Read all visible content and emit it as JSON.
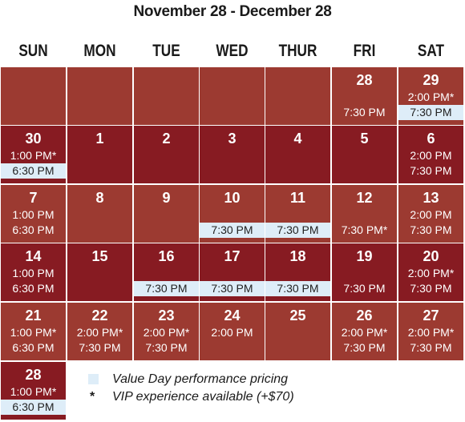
{
  "title": "November 28 - December 28",
  "days_of_week": [
    "SUN",
    "MON",
    "TUE",
    "WED",
    "THUR",
    "FRI",
    "SAT"
  ],
  "colors": {
    "cell_light": "#9c3a31",
    "cell_dark": "#871b22",
    "value_day": "#deedf8"
  },
  "weeks": [
    [
      {
        "date": "",
        "shade": "light",
        "times": []
      },
      {
        "date": "",
        "shade": "light",
        "times": []
      },
      {
        "date": "",
        "shade": "light",
        "times": []
      },
      {
        "date": "",
        "shade": "light",
        "times": []
      },
      {
        "date": "",
        "shade": "light",
        "times": []
      },
      {
        "date": "28",
        "shade": "light",
        "times": [
          {
            "text": "",
            "value": false
          },
          {
            "text": "7:30 PM",
            "value": false
          }
        ]
      },
      {
        "date": "29",
        "shade": "light",
        "times": [
          {
            "text": "2:00 PM*",
            "value": false
          },
          {
            "text": "7:30 PM",
            "value": true
          }
        ]
      }
    ],
    [
      {
        "date": "30",
        "shade": "dark",
        "times": [
          {
            "text": "1:00 PM*",
            "value": false
          },
          {
            "text": "6:30 PM",
            "value": true
          }
        ]
      },
      {
        "date": "1",
        "shade": "dark",
        "times": []
      },
      {
        "date": "2",
        "shade": "dark",
        "times": []
      },
      {
        "date": "3",
        "shade": "dark",
        "times": []
      },
      {
        "date": "4",
        "shade": "dark",
        "times": []
      },
      {
        "date": "5",
        "shade": "dark",
        "times": []
      },
      {
        "date": "6",
        "shade": "dark",
        "times": [
          {
            "text": "2:00 PM",
            "value": false
          },
          {
            "text": "7:30 PM",
            "value": false
          }
        ]
      }
    ],
    [
      {
        "date": "7",
        "shade": "light",
        "times": [
          {
            "text": "1:00 PM",
            "value": false
          },
          {
            "text": "6:30 PM",
            "value": false
          }
        ]
      },
      {
        "date": "8",
        "shade": "light",
        "times": []
      },
      {
        "date": "9",
        "shade": "light",
        "times": []
      },
      {
        "date": "10",
        "shade": "light",
        "times": [
          {
            "text": "",
            "value": false
          },
          {
            "text": "7:30 PM",
            "value": true
          }
        ]
      },
      {
        "date": "11",
        "shade": "light",
        "times": [
          {
            "text": "",
            "value": false
          },
          {
            "text": "7:30 PM",
            "value": true
          }
        ]
      },
      {
        "date": "12",
        "shade": "light",
        "times": [
          {
            "text": "",
            "value": false
          },
          {
            "text": "7:30 PM*",
            "value": false
          }
        ]
      },
      {
        "date": "13",
        "shade": "light",
        "times": [
          {
            "text": "2:00 PM",
            "value": false
          },
          {
            "text": "7:30 PM",
            "value": false
          }
        ]
      }
    ],
    [
      {
        "date": "14",
        "shade": "dark",
        "times": [
          {
            "text": "1:00 PM",
            "value": false
          },
          {
            "text": "6:30 PM",
            "value": false
          }
        ]
      },
      {
        "date": "15",
        "shade": "dark",
        "times": []
      },
      {
        "date": "16",
        "shade": "dark",
        "times": [
          {
            "text": "",
            "value": false
          },
          {
            "text": "7:30 PM",
            "value": true
          }
        ]
      },
      {
        "date": "17",
        "shade": "dark",
        "times": [
          {
            "text": "",
            "value": false
          },
          {
            "text": "7:30 PM",
            "value": true
          }
        ]
      },
      {
        "date": "18",
        "shade": "dark",
        "times": [
          {
            "text": "",
            "value": false
          },
          {
            "text": "7:30 PM",
            "value": true
          }
        ]
      },
      {
        "date": "19",
        "shade": "dark",
        "times": [
          {
            "text": "",
            "value": false
          },
          {
            "text": "7:30 PM",
            "value": false
          }
        ]
      },
      {
        "date": "20",
        "shade": "dark",
        "times": [
          {
            "text": "2:00 PM*",
            "value": false
          },
          {
            "text": "7:30 PM",
            "value": false
          }
        ]
      }
    ],
    [
      {
        "date": "21",
        "shade": "light",
        "times": [
          {
            "text": "1:00 PM*",
            "value": false
          },
          {
            "text": "6:30 PM",
            "value": false
          }
        ]
      },
      {
        "date": "22",
        "shade": "light",
        "times": [
          {
            "text": "2:00 PM*",
            "value": false
          },
          {
            "text": "7:30 PM",
            "value": false
          }
        ]
      },
      {
        "date": "23",
        "shade": "light",
        "times": [
          {
            "text": "2:00 PM*",
            "value": false
          },
          {
            "text": "7:30 PM",
            "value": false
          }
        ]
      },
      {
        "date": "24",
        "shade": "light",
        "times": [
          {
            "text": "2:00 PM",
            "value": false
          }
        ]
      },
      {
        "date": "25",
        "shade": "light",
        "times": []
      },
      {
        "date": "26",
        "shade": "light",
        "times": [
          {
            "text": "2:00 PM*",
            "value": false
          },
          {
            "text": "7:30 PM",
            "value": false
          }
        ]
      },
      {
        "date": "27",
        "shade": "light",
        "times": [
          {
            "text": "2:00 PM*",
            "value": false
          },
          {
            "text": "7:30 PM",
            "value": false
          }
        ]
      }
    ],
    [
      {
        "date": "28",
        "shade": "dark",
        "times": [
          {
            "text": "1:00 PM*",
            "value": false
          },
          {
            "text": "6:30 PM",
            "value": true
          }
        ]
      }
    ]
  ],
  "legend": {
    "value_day_label": "Value Day performance pricing",
    "vip_symbol": "*",
    "vip_label": "VIP experience available (+$70)"
  }
}
